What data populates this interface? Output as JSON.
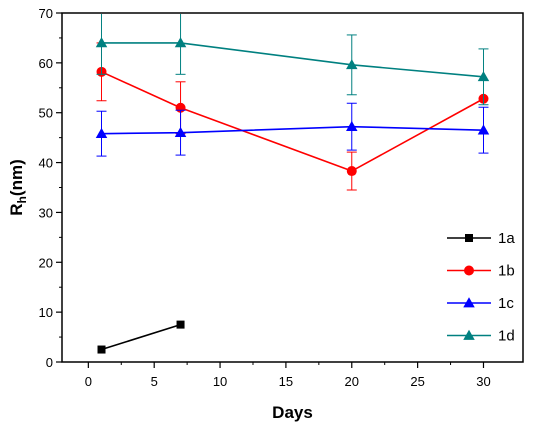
{
  "chart_data": {
    "type": "line",
    "xlabel": "Days",
    "ylabel_main": "R",
    "ylabel_sub": "h",
    "ylabel_suffix": "(nm)",
    "xlim": [
      -2,
      33
    ],
    "ylim": [
      0,
      70
    ],
    "xticks": [
      0,
      5,
      10,
      15,
      20,
      25,
      30
    ],
    "yticks": [
      0,
      10,
      20,
      30,
      40,
      50,
      60,
      70
    ],
    "grid": false,
    "legend_position": "bottom-right",
    "series": [
      {
        "name": "1a",
        "color": "#000000",
        "marker": "square",
        "x": [
          1,
          7
        ],
        "y": [
          2.5,
          7.5
        ],
        "err": [
          null,
          null
        ]
      },
      {
        "name": "1b",
        "color": "#ff0000",
        "marker": "circle",
        "x": [
          1,
          7,
          20,
          30
        ],
        "y": [
          58.2,
          51.0,
          38.3,
          52.8
        ],
        "err": [
          5.8,
          5.2,
          3.8,
          null
        ]
      },
      {
        "name": "1c",
        "color": "#0000ff",
        "marker": "triangle",
        "x": [
          1,
          7,
          20,
          30
        ],
        "y": [
          45.8,
          46.0,
          47.2,
          46.5
        ],
        "err": [
          4.5,
          4.5,
          4.7,
          4.6
        ]
      },
      {
        "name": "1d",
        "color": "#008080",
        "marker": "triangle",
        "x": [
          1,
          7,
          20,
          30
        ],
        "y": [
          64.0,
          64.0,
          59.6,
          57.2
        ],
        "err": [
          6.3,
          6.3,
          6.0,
          5.6
        ]
      }
    ]
  }
}
